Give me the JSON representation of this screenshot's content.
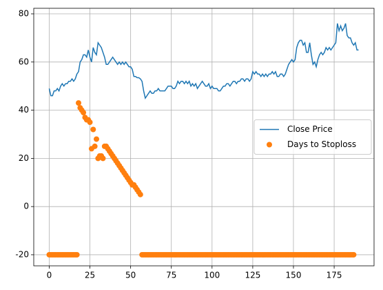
{
  "chart_data": {
    "type": "line",
    "x": [
      0,
      1,
      2,
      3,
      4,
      5,
      6,
      7,
      8,
      9,
      10,
      11,
      12,
      13,
      14,
      15,
      16,
      17,
      18,
      19,
      20,
      21,
      22,
      23,
      24,
      25,
      26,
      27,
      28,
      29,
      30,
      31,
      32,
      33,
      34,
      35,
      36,
      37,
      38,
      39,
      40,
      41,
      42,
      43,
      44,
      45,
      46,
      47,
      48,
      49,
      50,
      51,
      52,
      53,
      54,
      55,
      56,
      57,
      58,
      59,
      60,
      61,
      62,
      63,
      64,
      65,
      66,
      67,
      68,
      69,
      70,
      71,
      72,
      73,
      74,
      75,
      76,
      77,
      78,
      79,
      80,
      81,
      82,
      83,
      84,
      85,
      86,
      87,
      88,
      89,
      90,
      91,
      92,
      93,
      94,
      95,
      96,
      97,
      98,
      99,
      100,
      101,
      102,
      103,
      104,
      105,
      106,
      107,
      108,
      109,
      110,
      111,
      112,
      113,
      114,
      115,
      116,
      117,
      118,
      119,
      120,
      121,
      122,
      123,
      124,
      125,
      126,
      127,
      128,
      129,
      130,
      131,
      132,
      133,
      134,
      135,
      136,
      137,
      138,
      139,
      140,
      141,
      142,
      143,
      144,
      145,
      146,
      147,
      148,
      149,
      150,
      151,
      152,
      153,
      154,
      155,
      156,
      157,
      158,
      159,
      160,
      161,
      162,
      163,
      164,
      165,
      166,
      167,
      168,
      169,
      170,
      171,
      172,
      173,
      174,
      175,
      176,
      177,
      178,
      179,
      180,
      181,
      182,
      183,
      184,
      185,
      186,
      187,
      188,
      189,
      190
    ],
    "series": [
      {
        "name": "Close Price",
        "type": "line",
        "color": "#1f77b4",
        "values": [
          49,
          46,
          46,
          48,
          48,
          49,
          48,
          50,
          51,
          50,
          51,
          51,
          52,
          52,
          53,
          52,
          53,
          55,
          56,
          60,
          61,
          63,
          63,
          62,
          65,
          62,
          60,
          66,
          64,
          63,
          68,
          67,
          66,
          64,
          62,
          59,
          59,
          60,
          61,
          62,
          61,
          60,
          59,
          60,
          59,
          60,
          59,
          60,
          59,
          58,
          58,
          57,
          54,
          54,
          53.5,
          53.5,
          53,
          52,
          48,
          45,
          46,
          47,
          48,
          47,
          47,
          48,
          48,
          49,
          48,
          48,
          48,
          48,
          49,
          50,
          50,
          50,
          49,
          49,
          50,
          52,
          51,
          52,
          52,
          51,
          52,
          51,
          52,
          50,
          51,
          50,
          51,
          49,
          50,
          51,
          52,
          51,
          50,
          50,
          51,
          49,
          50,
          49,
          49,
          49,
          48,
          48,
          49,
          50,
          50,
          51,
          51,
          50,
          51,
          52,
          52,
          51,
          52,
          52,
          53,
          53,
          52,
          53,
          53,
          52,
          53,
          56,
          55,
          56,
          55,
          55,
          54,
          55,
          54,
          55,
          54,
          55,
          55,
          56,
          55,
          56,
          54,
          54,
          55,
          55,
          54,
          55,
          57,
          59,
          60,
          61,
          60,
          61,
          66,
          68,
          69,
          69,
          67,
          68,
          64,
          64,
          68,
          63,
          59,
          60,
          58,
          61,
          63,
          64,
          63,
          64,
          66,
          65,
          66,
          65,
          66,
          67,
          68,
          76,
          73,
          75,
          73,
          74,
          76,
          71,
          70,
          70,
          68,
          67,
          68,
          65,
          65
        ]
      },
      {
        "name": "Days to Stoploss",
        "type": "scatter",
        "color": "#ff7f0e",
        "values": [
          -20,
          -20,
          -20,
          -20,
          -20,
          -20,
          -20,
          -20,
          -20,
          -20,
          -20,
          -20,
          -20,
          -20,
          -20,
          -20,
          -20,
          -20,
          43,
          41,
          40,
          39,
          37,
          36,
          36,
          35,
          24,
          32,
          25,
          28,
          20,
          21,
          21,
          20,
          25,
          25,
          24,
          23,
          22,
          21,
          20,
          19,
          18,
          17,
          16,
          15,
          14,
          13,
          12,
          11,
          10,
          9,
          9,
          8,
          7,
          6,
          5,
          -20,
          -20,
          -20,
          -20,
          -20,
          -20,
          -20,
          -20,
          -20,
          -20,
          -20,
          -20,
          -20,
          -20,
          -20,
          -20,
          -20,
          -20,
          -20,
          -20,
          -20,
          -20,
          -20,
          -20,
          -20,
          -20,
          -20,
          -20,
          -20,
          -20,
          -20,
          -20,
          -20,
          -20,
          -20,
          -20,
          -20,
          -20,
          -20,
          -20,
          -20,
          -20,
          -20,
          -20,
          -20,
          -20,
          -20,
          -20,
          -20,
          -20,
          -20,
          -20,
          -20,
          -20,
          -20,
          -20,
          -20,
          -20,
          -20,
          -20,
          -20,
          -20,
          -20,
          -20,
          -20,
          -20,
          -20,
          -20,
          -20,
          -20,
          -20,
          -20,
          -20,
          -20,
          -20,
          -20,
          -20,
          -20,
          -20,
          -20,
          -20,
          -20,
          -20,
          -20,
          -20,
          -20,
          -20,
          -20,
          -20,
          -20,
          -20,
          -20,
          -20,
          -20,
          -20,
          -20,
          -20,
          -20,
          -20,
          -20,
          -20,
          -20,
          -20,
          -20,
          -20,
          -20,
          -20,
          -20,
          -20,
          -20,
          -20,
          -20,
          -20,
          -20,
          -20,
          -20,
          -20,
          -20,
          -20,
          -20,
          -20,
          -20,
          -20,
          -20,
          -20,
          -20,
          -20,
          -20,
          -20,
          -20,
          -20
        ]
      }
    ],
    "xlim": [
      -9.5,
      199.5
    ],
    "xticks": [
      0,
      25,
      50,
      75,
      100,
      125,
      150,
      175
    ],
    "ylim": [
      -24.6,
      82.3
    ],
    "yticks": [
      -20,
      0,
      20,
      40,
      60,
      80
    ],
    "grid": true,
    "legend": "center right"
  }
}
